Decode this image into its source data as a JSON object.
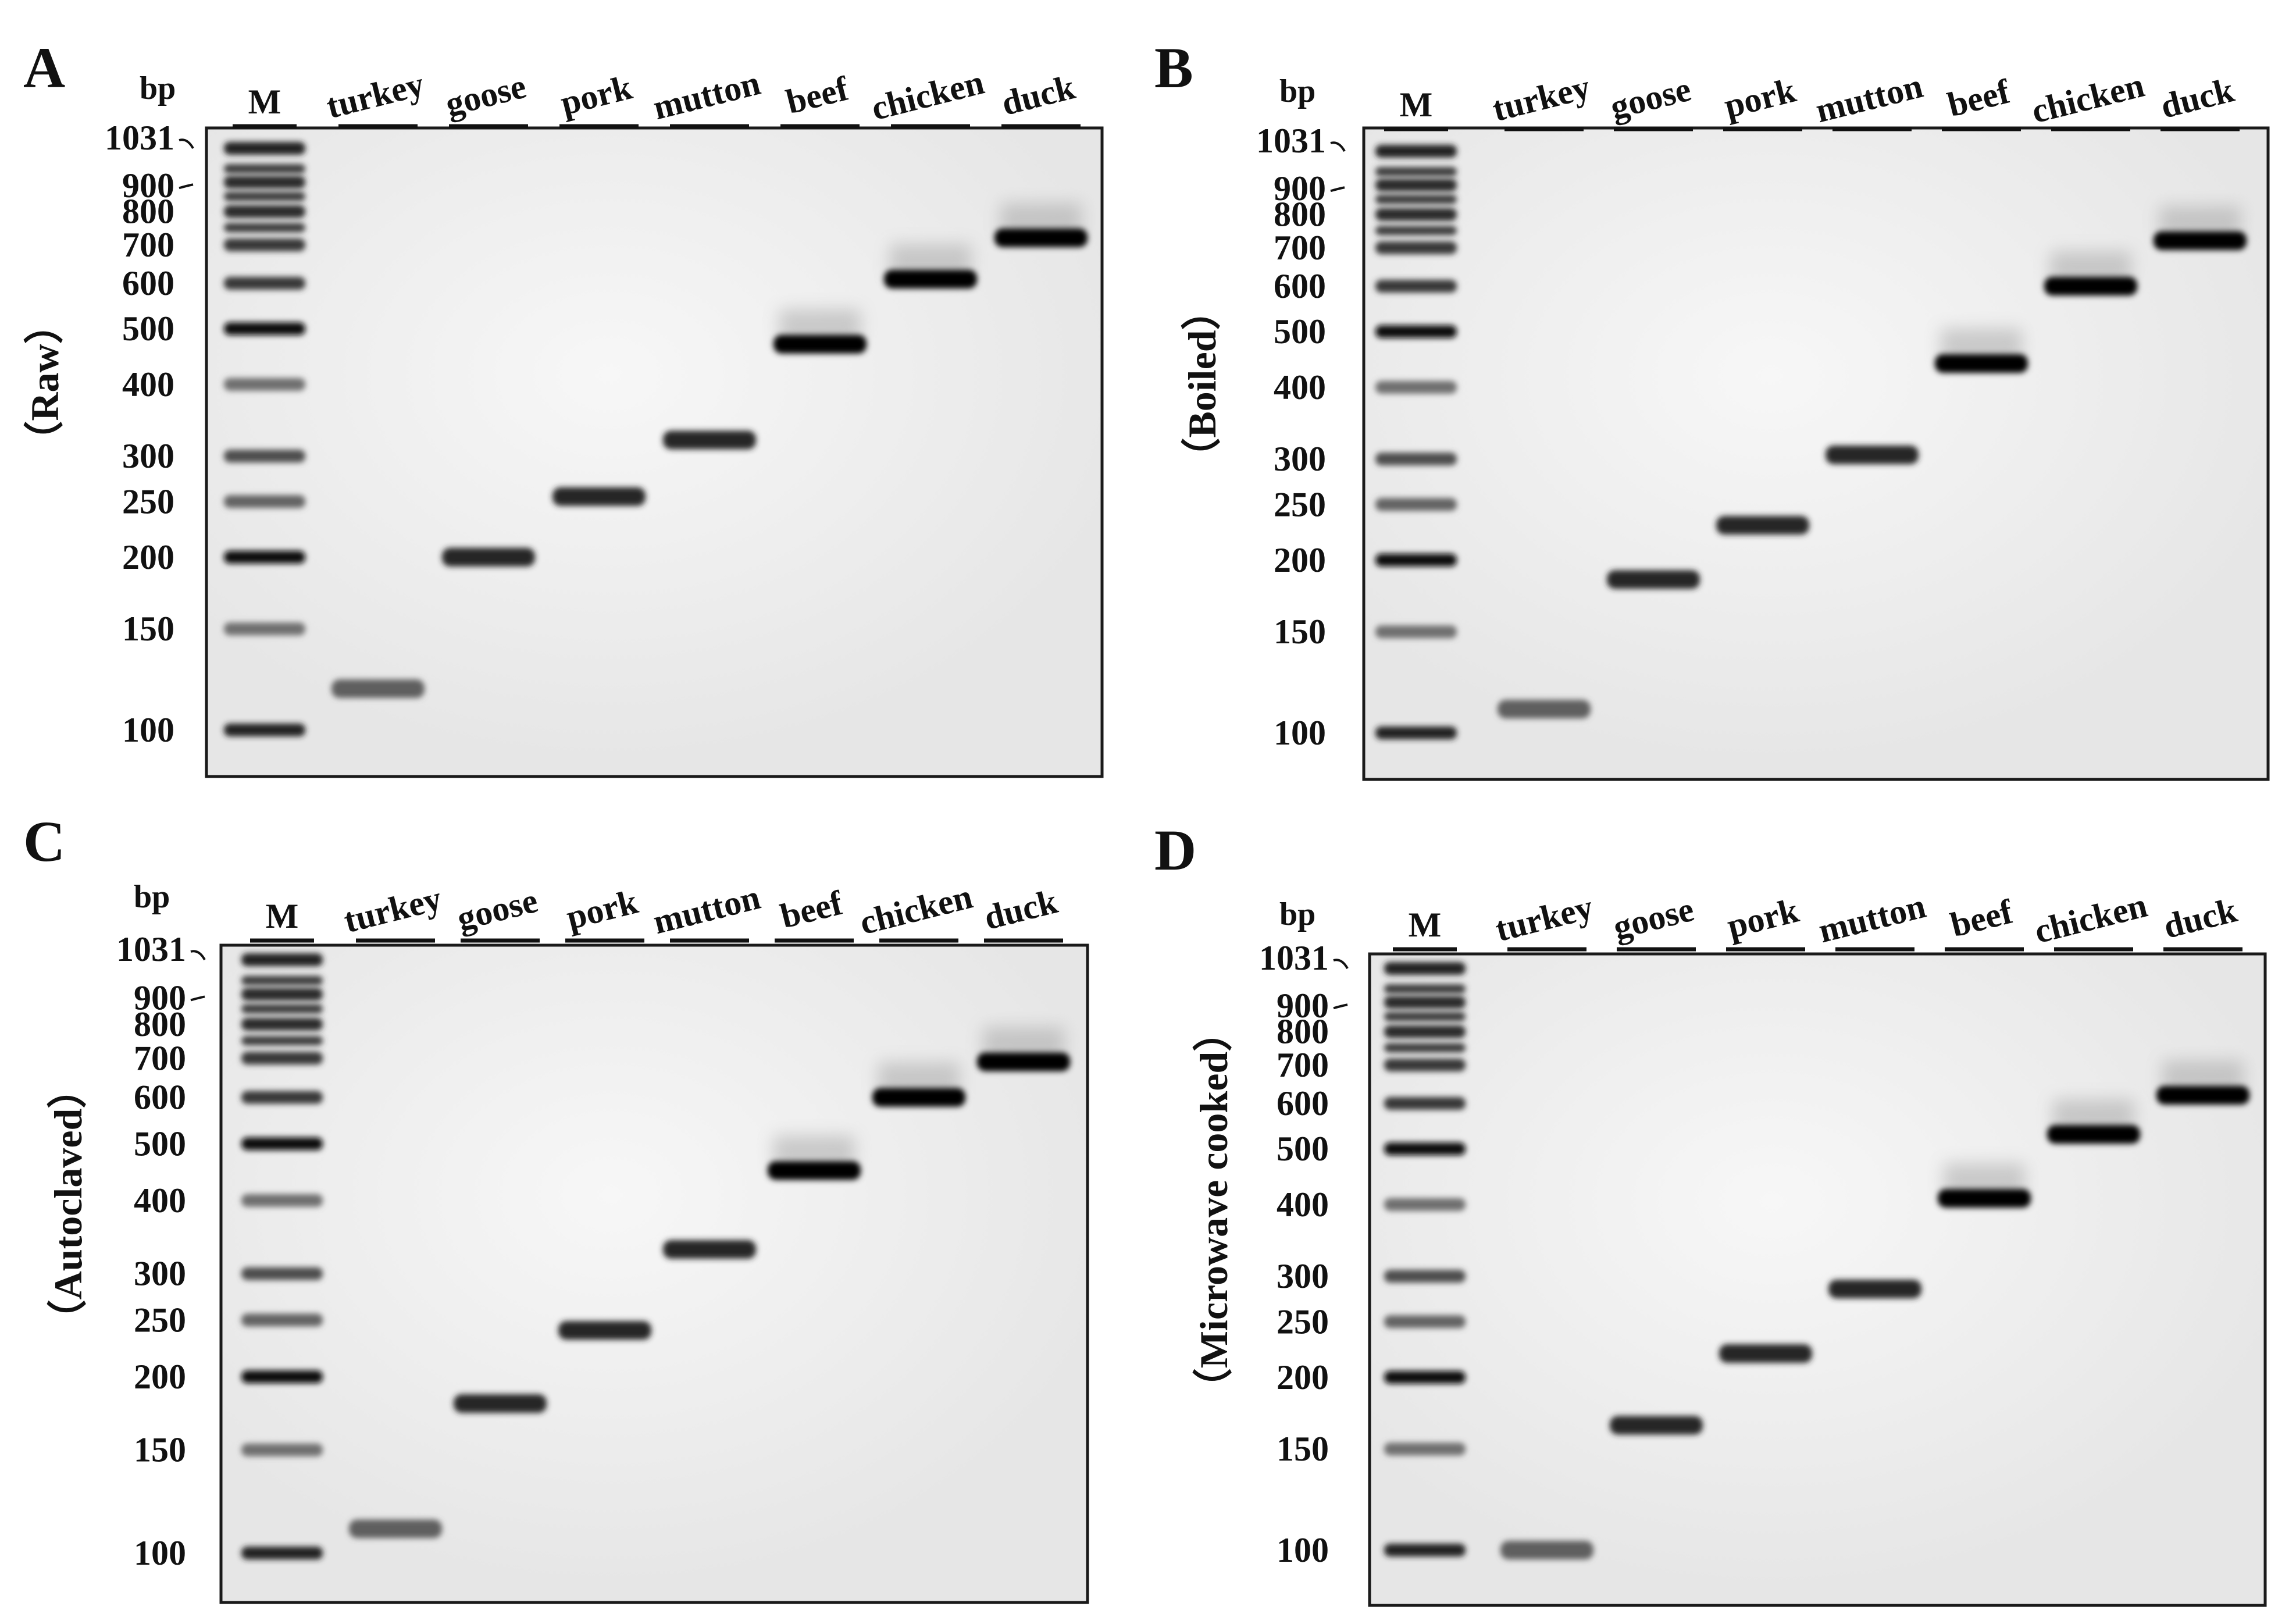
{
  "figure": {
    "panels": [
      {
        "letter": "A",
        "treatment": "（Raw）",
        "bp_label": "bp",
        "marker_label": "M",
        "lanes": [
          "turkey",
          "goose",
          "pork",
          "mutton",
          "beef",
          "chicken",
          "duck"
        ],
        "ladder_ticks": [
          "1031",
          "900",
          "800",
          "700",
          "600",
          "500",
          "400",
          "300",
          "250",
          "200",
          "150",
          "100"
        ],
        "band_sizes_bp": [
          118,
          200,
          255,
          320,
          470,
          610,
          720
        ]
      },
      {
        "letter": "B",
        "treatment": "（Boiled）",
        "bp_label": "bp",
        "marker_label": "M",
        "lanes": [
          "turkey",
          "goose",
          "pork",
          "mutton",
          "beef",
          "chicken",
          "duck"
        ],
        "ladder_ticks": [
          "1031",
          "900",
          "800",
          "700",
          "600",
          "500",
          "400",
          "300",
          "250",
          "200",
          "150",
          "100"
        ],
        "band_sizes_bp": [
          110,
          185,
          230,
          305,
          440,
          600,
          720
        ]
      },
      {
        "letter": "C",
        "treatment": "（Autoclaved）",
        "bp_label": "bp",
        "marker_label": "M",
        "lanes": [
          "turkey",
          "goose",
          "pork",
          "mutton",
          "beef",
          "chicken",
          "duck"
        ],
        "ladder_ticks": [
          "1031",
          "900",
          "800",
          "700",
          "600",
          "500",
          "400",
          "300",
          "250",
          "200",
          "150",
          "100"
        ],
        "band_sizes_bp": [
          110,
          180,
          240,
          330,
          450,
          600,
          690
        ]
      },
      {
        "letter": "D",
        "treatment": "（Microwave cooked）",
        "bp_label": "bp",
        "marker_label": "M",
        "lanes": [
          "turkey",
          "goose",
          "pork",
          "mutton",
          "beef",
          "chicken",
          "duck"
        ],
        "ladder_ticks": [
          "1031",
          "900",
          "800",
          "700",
          "600",
          "500",
          "400",
          "300",
          "250",
          "200",
          "150",
          "100"
        ],
        "band_sizes_bp": [
          100,
          165,
          220,
          285,
          410,
          530,
          620
        ]
      }
    ]
  }
}
